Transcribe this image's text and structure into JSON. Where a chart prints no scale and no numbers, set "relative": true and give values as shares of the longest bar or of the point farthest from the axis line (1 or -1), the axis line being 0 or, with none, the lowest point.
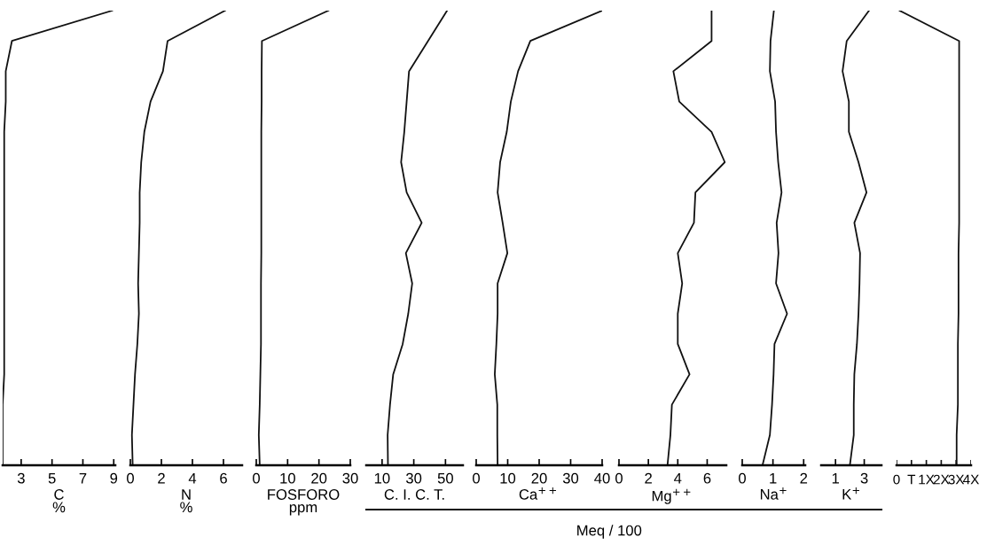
{
  "chart_data": [
    {
      "type": "line",
      "orientation": "horizontal",
      "tick_labels": "x",
      "xlabel": "C\n%",
      "categories": [
        null,
        null,
        null,
        null,
        null,
        null,
        null,
        null,
        null,
        null,
        null,
        null,
        null,
        null,
        null,
        null
      ],
      "xlim": [
        1.8,
        9.1
      ],
      "xticks": [
        3,
        5,
        7,
        9
      ],
      "series": [
        {
          "color": "#111111",
          "values": [
            8.9,
            2.4,
            2.0,
            2.0,
            1.9,
            1.9,
            1.9,
            1.9,
            1.9,
            1.9,
            1.9,
            1.9,
            1.9,
            1.8,
            1.8,
            1.8
          ]
        }
      ]
    },
    {
      "type": "line",
      "orientation": "horizontal",
      "tick_labels": "x",
      "xlabel": "N\n%",
      "categories": [
        null,
        null,
        null,
        null,
        null,
        null,
        null,
        null,
        null,
        null,
        null,
        null,
        null,
        null,
        null,
        null
      ],
      "xlim": [
        0,
        7.2
      ],
      "xticks": [
        0,
        2,
        4,
        6
      ],
      "series": [
        {
          "color": "#111111",
          "values": [
            6.1,
            2.4,
            2.1,
            1.3,
            0.9,
            0.7,
            0.6,
            0.6,
            0.55,
            0.5,
            0.55,
            0.45,
            0.3,
            0.2,
            0.1,
            0.15
          ]
        }
      ]
    },
    {
      "type": "line",
      "orientation": "horizontal",
      "tick_labels": "x",
      "xlabel": "FOSFORO\nppm",
      "categories": [
        null,
        null,
        null,
        null,
        null,
        null,
        null,
        null,
        null,
        null,
        null,
        null,
        null,
        null,
        null,
        null
      ],
      "xlim": [
        0,
        30
      ],
      "xticks": [
        0,
        10,
        20,
        30
      ],
      "series": [
        {
          "color": "#111111",
          "values": [
            23,
            1.8,
            1.7,
            1.7,
            1.6,
            1.6,
            1.6,
            1.6,
            1.6,
            1.5,
            1.5,
            1.5,
            1.3,
            1.1,
            0.8,
            1.1
          ]
        }
      ]
    },
    {
      "type": "line",
      "orientation": "horizontal",
      "tick_labels": "x",
      "xlabel": "C. I. C. T.",
      "categories": [
        null,
        null,
        null,
        null,
        null,
        null,
        null,
        null,
        null,
        null,
        null,
        null,
        null,
        null,
        null,
        null
      ],
      "xlim": [
        0,
        61
      ],
      "xticks": [
        10,
        30,
        50
      ],
      "series": [
        {
          "color": "#111111",
          "values": [
            51,
            39,
            27,
            25.5,
            24,
            22,
            25.5,
            35,
            25,
            29,
            26.5,
            23,
            17,
            15,
            13.5,
            13.7
          ]
        }
      ]
    },
    {
      "type": "line",
      "orientation": "horizontal",
      "tick_labels": "x",
      "xlabel": "Ca$^{++}$",
      "categories": [
        null,
        null,
        null,
        null,
        null,
        null,
        null,
        null,
        null,
        null,
        null,
        null,
        null,
        null,
        null,
        null
      ],
      "xlim": [
        0,
        40
      ],
      "xticks": [
        0,
        10,
        20,
        30,
        40
      ],
      "series": [
        {
          "color": "#111111",
          "values": [
            40,
            17.2,
            13.3,
            11,
            9.7,
            7.6,
            6.8,
            8.4,
            9.9,
            6.8,
            6.8,
            6.4,
            5.9,
            6.7,
            6.7,
            6.8
          ]
        }
      ]
    },
    {
      "type": "line",
      "orientation": "horizontal",
      "tick_labels": "x",
      "xlabel": "Mg$^{++}$",
      "annotations": [
        "Meq / 100"
      ],
      "categories": [
        null,
        null,
        null,
        null,
        null,
        null,
        null,
        null,
        null,
        null,
        null,
        null,
        null,
        null,
        null,
        null
      ],
      "xlim": [
        0,
        7.3
      ],
      "xticks": [
        0,
        2,
        4,
        6
      ],
      "series": [
        {
          "color": "#111111",
          "values": [
            6.3,
            6.3,
            3.7,
            4.1,
            6.3,
            7.2,
            5.2,
            5.1,
            4.0,
            4.3,
            4.0,
            4.0,
            4.8,
            3.6,
            3.5,
            3.3
          ]
        }
      ]
    },
    {
      "type": "line",
      "orientation": "horizontal",
      "tick_labels": "x",
      "xlabel": "Na$^{+}$",
      "categories": [
        null,
        null,
        null,
        null,
        null,
        null,
        null,
        null,
        null,
        null,
        null,
        null,
        null,
        null,
        null,
        null
      ],
      "xlim": [
        0,
        2.05
      ],
      "xticks": [
        0,
        1,
        2
      ],
      "series": [
        {
          "color": "#111111",
          "values": [
            1.03,
            0.92,
            0.9,
            1.07,
            1.1,
            1.17,
            1.28,
            1.12,
            1.18,
            1.1,
            1.46,
            1.05,
            1.02,
            0.97,
            0.9,
            0.66
          ]
        }
      ]
    },
    {
      "type": "line",
      "orientation": "horizontal",
      "tick_labels": "x",
      "xlabel": "K$^{+}$",
      "categories": [
        null,
        null,
        null,
        null,
        null,
        null,
        null,
        null,
        null,
        null,
        null,
        null,
        null,
        null,
        null,
        null
      ],
      "xlim": [
        0,
        4.2
      ],
      "xticks": [
        1,
        3
      ],
      "series": [
        {
          "color": "#111111",
          "values": [
            3.33,
            1.78,
            1.49,
            1.93,
            1.93,
            2.6,
            3.16,
            2.31,
            2.71,
            2.67,
            2.6,
            2.49,
            2.31,
            2.27,
            2.27,
            2.0
          ]
        }
      ]
    },
    {
      "type": "line",
      "orientation": "horizontal",
      "relative": true,
      "tick_labels": false,
      "annotations": [
        "0",
        "T",
        "1X",
        "2X",
        "3X",
        "4X"
      ],
      "categories": [
        null,
        null,
        null,
        null,
        null,
        null,
        null,
        null,
        null,
        null,
        null,
        null,
        null,
        null,
        null,
        null
      ],
      "series": [
        {
          "color": "#111111",
          "values": [
            0.05,
            1.0,
            1.0,
            1.0,
            1.0,
            1.0,
            1.0,
            1.0,
            0.99,
            0.99,
            0.99,
            0.98,
            0.98,
            0.98,
            0.96,
            0.96
          ]
        }
      ]
    }
  ]
}
